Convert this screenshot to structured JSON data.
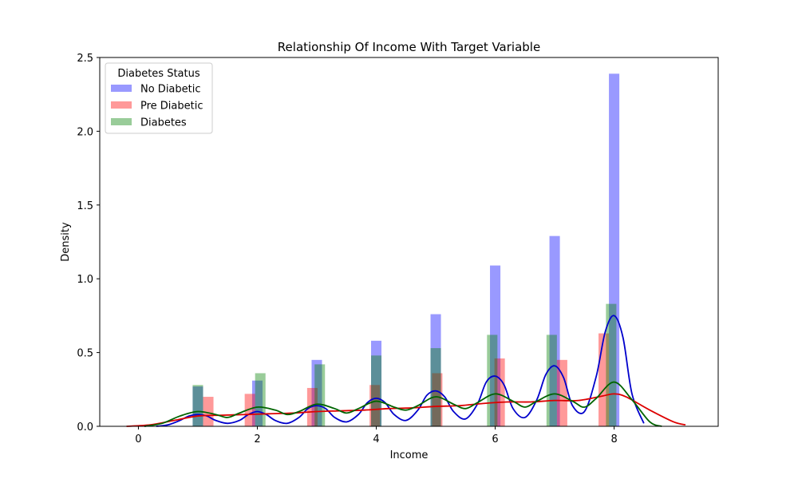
{
  "chart_data": {
    "type": "bar",
    "title": "Relationship Of Income With Target Variable",
    "xlabel": "Income",
    "ylabel": "Density",
    "xlim": [
      -0.65,
      9.75
    ],
    "ylim": [
      0,
      2.5
    ],
    "xticks": [
      0,
      2,
      4,
      6,
      8
    ],
    "yticks": [
      0.0,
      0.5,
      1.0,
      1.5,
      2.0,
      2.5
    ],
    "ytick_labels": [
      "0.0",
      "0.5",
      "1.0",
      "1.5",
      "2.0",
      "2.5"
    ],
    "grid": false,
    "legend": {
      "title": "Diabetes Status",
      "position": "top-left"
    },
    "bar_width": 0.175,
    "series": [
      {
        "name": "No Diabetic",
        "color": "#0000ff",
        "bar_opacity": 0.4,
        "bars": [
          {
            "x": 1.0,
            "value": 0.27
          },
          {
            "x": 2.0,
            "value": 0.31
          },
          {
            "x": 3.0,
            "value": 0.45
          },
          {
            "x": 4.0,
            "value": 0.58
          },
          {
            "x": 5.0,
            "value": 0.76
          },
          {
            "x": 6.0,
            "value": 1.09
          },
          {
            "x": 7.0,
            "value": 1.29
          },
          {
            "x": 8.0,
            "value": 2.39
          }
        ],
        "kde": {
          "x": [
            0.3,
            0.5,
            0.7,
            0.85,
            1.0,
            1.15,
            1.3,
            1.5,
            1.7,
            1.85,
            2.0,
            2.15,
            2.3,
            2.5,
            2.7,
            2.85,
            3.0,
            3.15,
            3.3,
            3.5,
            3.7,
            3.85,
            4.0,
            4.15,
            4.3,
            4.5,
            4.7,
            4.85,
            5.0,
            5.15,
            5.3,
            5.5,
            5.7,
            5.85,
            6.0,
            6.15,
            6.3,
            6.5,
            6.7,
            6.85,
            7.0,
            7.15,
            7.3,
            7.5,
            7.7,
            7.85,
            8.0,
            8.15,
            8.3,
            8.5
          ],
          "y": [
            0.0,
            0.01,
            0.04,
            0.07,
            0.08,
            0.07,
            0.04,
            0.02,
            0.04,
            0.08,
            0.1,
            0.08,
            0.04,
            0.02,
            0.06,
            0.12,
            0.14,
            0.12,
            0.06,
            0.03,
            0.08,
            0.16,
            0.19,
            0.16,
            0.08,
            0.04,
            0.11,
            0.21,
            0.24,
            0.2,
            0.1,
            0.05,
            0.15,
            0.3,
            0.34,
            0.28,
            0.12,
            0.06,
            0.18,
            0.35,
            0.41,
            0.33,
            0.14,
            0.1,
            0.34,
            0.64,
            0.75,
            0.6,
            0.22,
            0.02
          ]
        }
      },
      {
        "name": "Pre Diabetic",
        "color": "#ff0000",
        "bar_opacity": 0.4,
        "bars": [
          {
            "x": 1.175,
            "value": 0.2
          },
          {
            "x": 1.875,
            "value": 0.22
          },
          {
            "x": 2.925,
            "value": 0.26
          },
          {
            "x": 3.975,
            "value": 0.28
          },
          {
            "x": 5.025,
            "value": 0.36
          },
          {
            "x": 6.075,
            "value": 0.46
          },
          {
            "x": 7.125,
            "value": 0.45
          },
          {
            "x": 7.825,
            "value": 0.63
          }
        ],
        "kde": {
          "x": [
            -0.2,
            0.2,
            0.6,
            1.0,
            1.4,
            1.8,
            2.2,
            2.6,
            3.0,
            3.4,
            3.8,
            4.2,
            4.6,
            5.0,
            5.4,
            5.8,
            6.2,
            6.6,
            7.0,
            7.4,
            7.8,
            8.0,
            8.2,
            8.6,
            9.0,
            9.2
          ],
          "y": [
            0.0,
            0.01,
            0.04,
            0.07,
            0.075,
            0.08,
            0.085,
            0.09,
            0.1,
            0.105,
            0.11,
            0.12,
            0.125,
            0.135,
            0.14,
            0.155,
            0.165,
            0.165,
            0.175,
            0.175,
            0.205,
            0.22,
            0.2,
            0.11,
            0.03,
            0.01
          ]
        }
      },
      {
        "name": "Diabetes",
        "color": "#008000",
        "bar_opacity": 0.4,
        "bars": [
          {
            "x": 1.0,
            "value": 0.28
          },
          {
            "x": 2.05,
            "value": 0.36
          },
          {
            "x": 3.05,
            "value": 0.42
          },
          {
            "x": 4.0,
            "value": 0.48
          },
          {
            "x": 5.0,
            "value": 0.53
          },
          {
            "x": 5.95,
            "value": 0.62
          },
          {
            "x": 6.95,
            "value": 0.62
          },
          {
            "x": 7.95,
            "value": 0.83
          }
        ],
        "kde": {
          "x": [
            0.1,
            0.4,
            0.7,
            1.0,
            1.3,
            1.5,
            1.7,
            2.0,
            2.3,
            2.5,
            2.7,
            3.0,
            3.3,
            3.5,
            3.7,
            4.0,
            4.3,
            4.5,
            4.7,
            5.0,
            5.3,
            5.5,
            5.7,
            6.0,
            6.3,
            6.5,
            6.7,
            7.0,
            7.3,
            7.5,
            7.7,
            8.0,
            8.3,
            8.6,
            8.8
          ],
          "y": [
            0.0,
            0.02,
            0.07,
            0.1,
            0.08,
            0.06,
            0.09,
            0.13,
            0.11,
            0.08,
            0.1,
            0.15,
            0.12,
            0.09,
            0.12,
            0.17,
            0.13,
            0.11,
            0.14,
            0.2,
            0.15,
            0.12,
            0.16,
            0.22,
            0.17,
            0.13,
            0.17,
            0.22,
            0.17,
            0.13,
            0.19,
            0.3,
            0.18,
            0.03,
            0.0
          ]
        }
      }
    ]
  }
}
